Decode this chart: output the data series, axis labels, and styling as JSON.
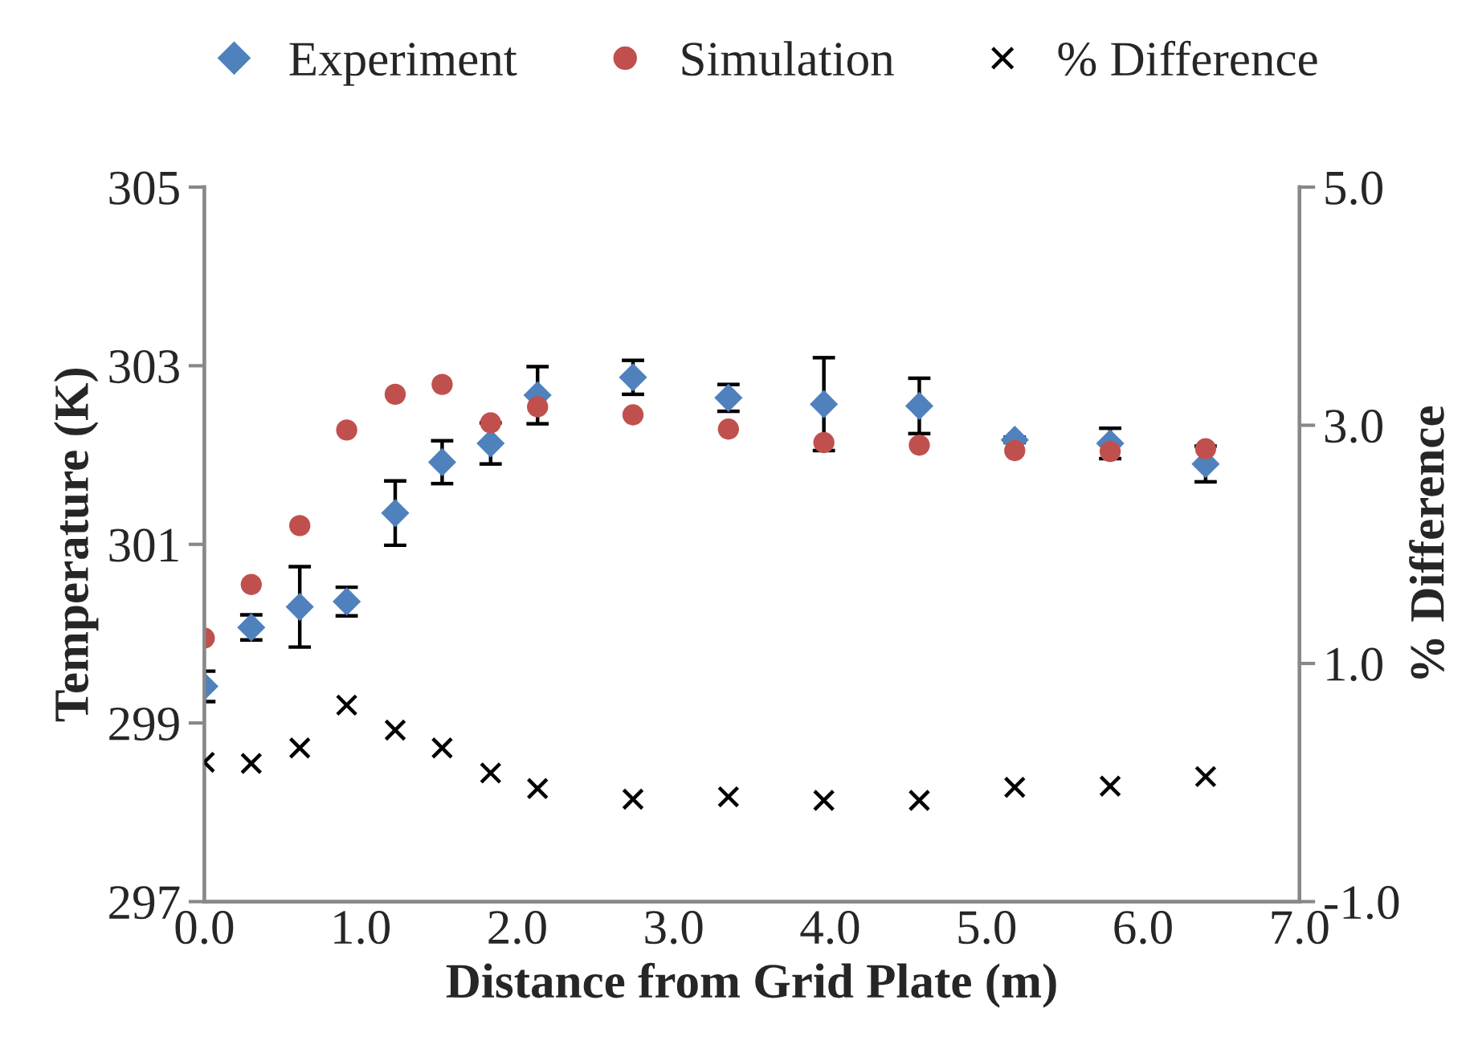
{
  "chart_data": {
    "type": "scatter",
    "xlabel": "Distance from Grid Plate (m)",
    "ylabel": "Temperature (K)",
    "y2label": "% Difference",
    "x": [
      0,
      0.3,
      0.61,
      0.91,
      1.22,
      1.52,
      1.83,
      2.13,
      2.74,
      3.35,
      3.96,
      4.57,
      5.18,
      5.79,
      6.4
    ],
    "series": [
      {
        "name": "Experiment",
        "color": "#4f81bd",
        "marker": "diamond",
        "values": [
          299.41,
          300.07,
          300.3,
          300.36,
          301.35,
          301.92,
          302.13,
          302.67,
          302.87,
          302.64,
          302.57,
          302.55,
          302.17,
          302.13,
          301.9
        ],
        "errors": [
          0.17,
          0.14,
          0.45,
          0.16,
          0.36,
          0.24,
          0.23,
          0.32,
          0.19,
          0.15,
          0.52,
          0.31,
          0.03,
          0.17,
          0.2
        ]
      },
      {
        "name": "Simulation",
        "color": "#c0504d",
        "marker": "circle",
        "values": [
          299.95,
          300.55,
          301.21,
          302.28,
          302.68,
          302.79,
          302.36,
          302.54,
          302.45,
          302.29,
          302.14,
          302.11,
          302.05,
          302.04,
          302.07
        ]
      },
      {
        "name": "% Difference",
        "color": "#000000",
        "marker": "cross",
        "axis": "y2",
        "values": [
          0.17,
          0.16,
          0.29,
          0.65,
          0.44,
          0.29,
          0.08,
          -0.05,
          -0.14,
          -0.12,
          -0.15,
          -0.15,
          -0.04,
          -0.03,
          0.05
        ]
      }
    ],
    "xlim": [
      0,
      7
    ],
    "xticks": [
      {
        "value": 0,
        "label": "0.0"
      },
      {
        "value": 1,
        "label": "1.0"
      },
      {
        "value": 2,
        "label": "2.0"
      },
      {
        "value": 3,
        "label": "3.0"
      },
      {
        "value": 4,
        "label": "4.0"
      },
      {
        "value": 5,
        "label": "5.0"
      },
      {
        "value": 6,
        "label": "6.0"
      },
      {
        "value": 7,
        "label": "7.0"
      }
    ],
    "ylim": [
      297,
      305
    ],
    "yticks": [
      297,
      299,
      301,
      303,
      305
    ],
    "y2lim": [
      -1,
      5
    ],
    "y2ticks": [
      {
        "value": -1,
        "label": "-1.0"
      },
      {
        "value": 1,
        "label": "1.0"
      },
      {
        "value": 3,
        "label": "3.0"
      },
      {
        "value": 5,
        "label": "5.0"
      }
    ],
    "grid": false,
    "legend": "top"
  }
}
